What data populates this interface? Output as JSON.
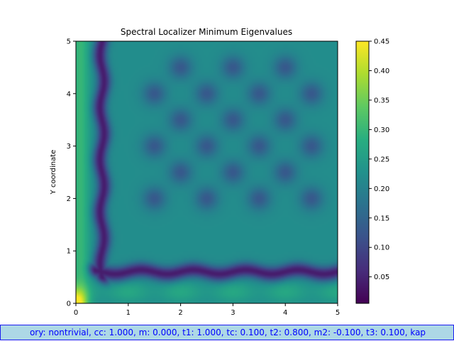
{
  "chart_data": {
    "type": "heatmap",
    "title": "Spectral Localizer Minimum Eigenvalues",
    "xlabel": "",
    "ylabel": "Y coordinate",
    "xlim": [
      0,
      5
    ],
    "ylim": [
      0,
      5
    ],
    "x_ticks": [
      "0",
      "1",
      "2",
      "3",
      "4",
      "5"
    ],
    "y_ticks": [
      "0",
      "1",
      "2",
      "3",
      "4",
      "5"
    ],
    "colormap": "viridis",
    "colorbar": {
      "min": 0.005,
      "max": 0.45,
      "ticks": [
        "0.05",
        "0.10",
        "0.15",
        "0.20",
        "0.25",
        "0.30",
        "0.35",
        "0.40",
        "0.45"
      ]
    },
    "grid": false,
    "features": {
      "bulk_value": 0.22,
      "dip_centers_x": [
        1.5,
        2.5,
        3.5,
        4.5
      ],
      "dip_centers_y": [
        2.0,
        3.0,
        4.0
      ],
      "dip_centers_x_alt": [
        2.0,
        3.0,
        4.0
      ],
      "dip_centers_y_alt": [
        2.5,
        3.5,
        4.5
      ],
      "vertical_trough_x": 0.5,
      "horizontal_trough_y": 0.6,
      "trough_value": 0.04,
      "corner_peak_value": 0.45
    }
  },
  "status_bar": {
    "text": "ory: nontrivial, cc: 1.000, m: 0.000, t1: 1.000, tc: 0.100, t2: 0.800, m2: -0.100, t3: 0.100, kap"
  }
}
